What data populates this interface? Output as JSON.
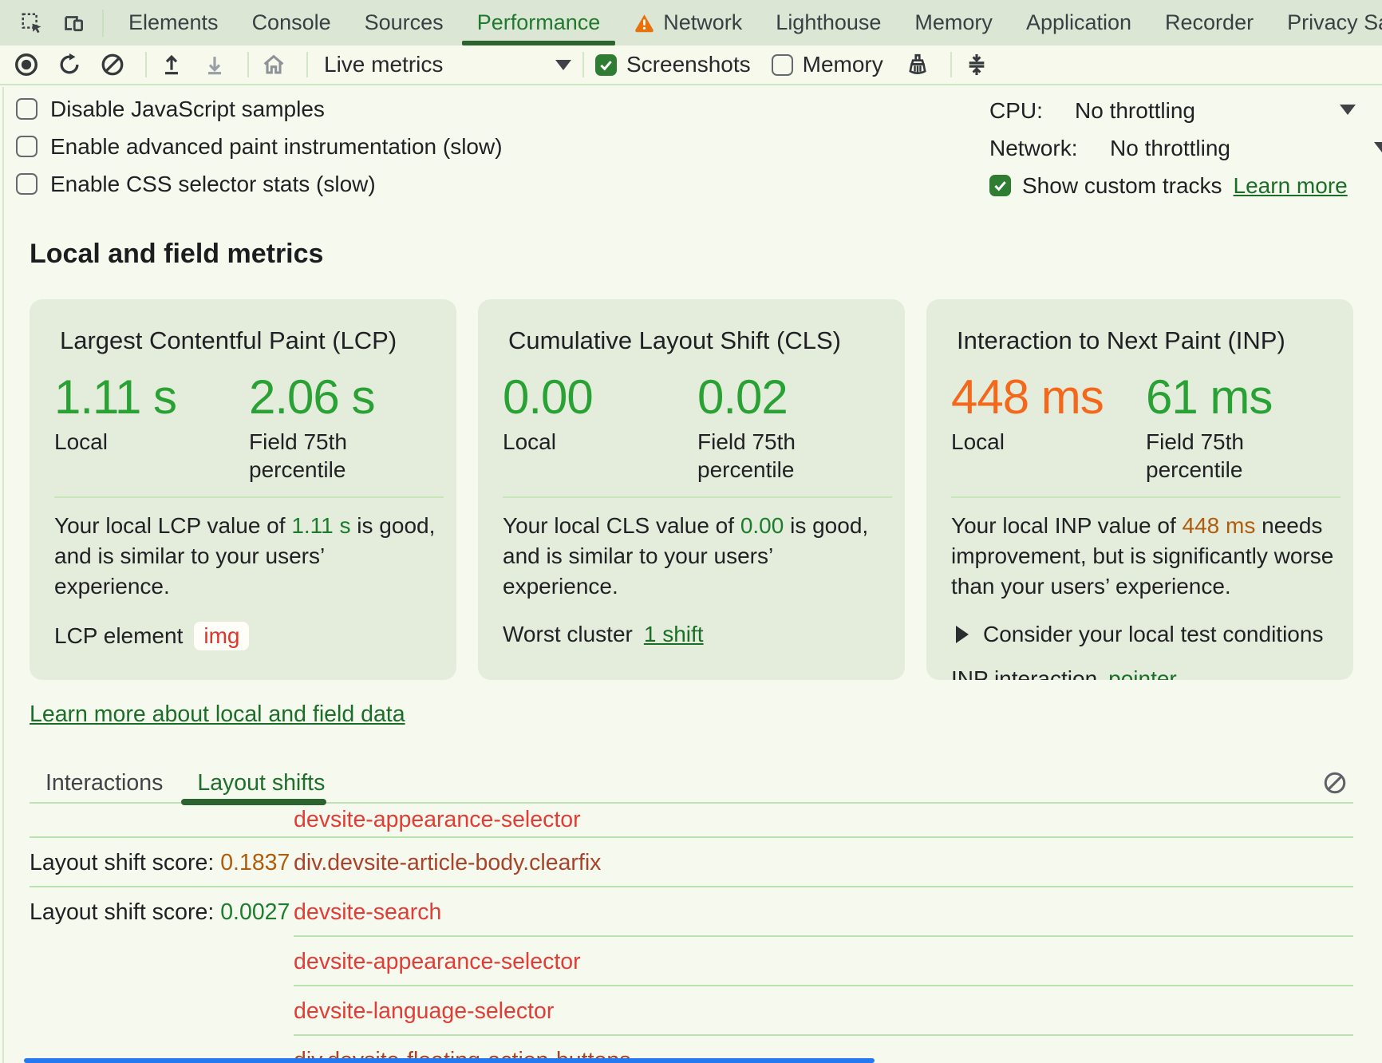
{
  "colors": {
    "good": "#29a135",
    "needs_improvement": "#f4681c",
    "inline_good": "#1b7d2c",
    "inline_needs": "#b05c0c",
    "link": "#1a6e28",
    "node_red": "#e13d36",
    "node_rust": "#a8432c",
    "score_orange": "#b05c0c",
    "score_green": "#1e7d2f",
    "accent": "#2c6430",
    "warning": "#e8710a"
  },
  "icons": {
    "inspect": "inspect-cursor",
    "device": "device-toolbar",
    "record": "record-circle",
    "reload": "reload-arrow",
    "clear": "circle-slash",
    "upload": "arrow-up-from-line",
    "download": "arrow-down-to-line",
    "home": "house",
    "gc": "broom",
    "shortcuts": "collapse-arrows",
    "dropdown": "triangle-down",
    "warning": "warning-triangle",
    "clear_log": "circle-slash",
    "disclosure": "triangle-right"
  },
  "devtools": {
    "tabbar": {
      "tabs": [
        {
          "label": "Elements"
        },
        {
          "label": "Console"
        },
        {
          "label": "Sources"
        },
        {
          "label": "Performance",
          "selected": true
        },
        {
          "label": "Network",
          "warning": true
        },
        {
          "label": "Lighthouse"
        },
        {
          "label": "Memory"
        },
        {
          "label": "Application"
        },
        {
          "label": "Recorder"
        },
        {
          "label": "Privacy Sandbox"
        }
      ]
    },
    "toolbar": {
      "live_metrics": "Live metrics",
      "screenshots": "Screenshots",
      "screenshots_checked": true,
      "memory": "Memory",
      "memory_checked": false
    },
    "settings": {
      "checkboxes": [
        {
          "label": "Disable JavaScript samples",
          "checked": false
        },
        {
          "label": "Enable advanced paint instrumentation (slow)",
          "checked": false
        },
        {
          "label": "Enable CSS selector stats (slow)",
          "checked": false
        }
      ],
      "cpu_label": "CPU:",
      "cpu_value": "No throttling",
      "network_label": "Network:",
      "network_value": "No throttling",
      "custom_tracks": {
        "label": "Show custom tracks",
        "checked": true,
        "link": "Learn more"
      }
    },
    "metrics": {
      "heading": "Local and field metrics",
      "learn_more": "Learn more about local and field data",
      "cards": [
        {
          "short": "lcp",
          "title": "Largest Contentful Paint (LCP)",
          "local": {
            "value": "1.11 s",
            "color": "good",
            "label": "Local"
          },
          "field": {
            "value": "2.06 s",
            "color": "good",
            "label": "Field 75th percentile"
          },
          "desc": {
            "pre": "Your local LCP value of ",
            "value": "1.11 s",
            "value_color": "inline_good",
            "post": " is good, and is similar to your users’ experience."
          },
          "extras": [
            {
              "type": "chip",
              "label": "LCP element",
              "value": "img"
            }
          ]
        },
        {
          "short": "cls",
          "title": "Cumulative Layout Shift (CLS)",
          "local": {
            "value": "0.00",
            "color": "good",
            "label": "Local"
          },
          "field": {
            "value": "0.02",
            "color": "good",
            "label": "Field 75th percentile"
          },
          "desc": {
            "pre": "Your local CLS value of ",
            "value": "0.00",
            "value_color": "inline_good",
            "post": " is good, and is similar to your users’ experience."
          },
          "extras": [
            {
              "type": "link",
              "label": "Worst cluster",
              "value": "1 shift"
            }
          ]
        },
        {
          "short": "inp",
          "title": "Interaction to Next Paint (INP)",
          "local": {
            "value": "448 ms",
            "color": "needs_improvement",
            "label": "Local"
          },
          "field": {
            "value": "61 ms",
            "color": "good",
            "label": "Field 75th percentile"
          },
          "desc": {
            "pre": "Your local INP value of ",
            "value": "448 ms",
            "value_color": "inline_needs",
            "post": " needs improvement, but is significantly worse than your users’ experience."
          },
          "extras": [
            {
              "type": "disclosure",
              "value": "Consider your local test conditions"
            },
            {
              "type": "link",
              "label": "INP interaction",
              "value": "pointer"
            }
          ]
        }
      ]
    },
    "log": {
      "tabs": [
        {
          "label": "Interactions"
        },
        {
          "label": "Layout shifts",
          "selected": true
        }
      ],
      "rows": [
        {
          "node": "devsite-appearance-selector",
          "node_color": "node_red",
          "sep": "full"
        },
        {
          "score_label": "Layout shift score: ",
          "score": "0.1837",
          "score_color": "score_orange",
          "node": "div.devsite-article-body.clearfix",
          "node_color": "node_rust",
          "sep": "full"
        },
        {
          "score_label": "Layout shift score: ",
          "score": "0.0027",
          "score_color": "score_green",
          "node": "devsite-search",
          "node_color": "node_red",
          "sep": "indent"
        },
        {
          "node": "devsite-appearance-selector",
          "node_color": "node_red",
          "sep": "indent"
        },
        {
          "node": "devsite-language-selector",
          "node_color": "node_red",
          "sep": "indent"
        },
        {
          "node": "div.devsite-floating-action-buttons",
          "node_color": "node_rust"
        }
      ]
    }
  }
}
